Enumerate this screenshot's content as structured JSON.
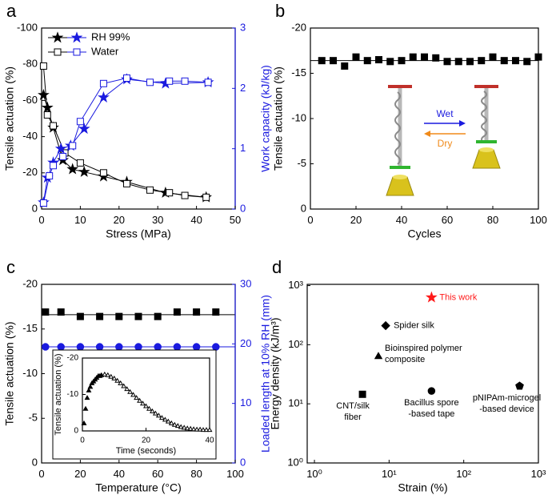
{
  "chart_data": [
    {
      "type": "line",
      "panel": "a",
      "xlabel": "Stress (MPa)",
      "ylabel": "Tensile actuation (%)",
      "y2label": "Work capacity  (kJ/kg)",
      "xlim": [
        0,
        50
      ],
      "xticks": [
        0,
        10,
        20,
        30,
        40,
        50
      ],
      "ylim": [
        0,
        -100
      ],
      "yticks": [
        0,
        -20,
        -40,
        -60,
        -80,
        -100
      ],
      "y2lim": [
        0,
        3
      ],
      "y2ticks": [
        0,
        1,
        2,
        3
      ],
      "y2color": "#1a1adf",
      "legend": "upper left",
      "series": [
        {
          "name": "RH 99%",
          "marker": "star-filled",
          "color": "#000000",
          "connect": true,
          "x": [
            0.5,
            1.5,
            3,
            5.5,
            8,
            11,
            16,
            22,
            32,
            42.5
          ],
          "values": [
            -63,
            -56,
            -45,
            -27,
            -22,
            -20.5,
            -18,
            -15,
            -9,
            -6.5
          ]
        },
        {
          "name": "Water",
          "marker": "square-open",
          "color": "#000000",
          "connect": true,
          "x": [
            0.5,
            1.5,
            3,
            6,
            10,
            16,
            22,
            28,
            33,
            37,
            42.5
          ],
          "values": [
            -79,
            -52,
            -46,
            -31,
            -25.5,
            -20,
            -14,
            -10.5,
            -9,
            -7.5,
            -6.5
          ]
        },
        {
          "marker": "star-filled",
          "color": "#1a1adf",
          "axis": "y2",
          "connect": true,
          "x": [
            0.5,
            1.5,
            3,
            5,
            7.5,
            11,
            16,
            22,
            32,
            43
          ],
          "values": [
            0.11,
            0.52,
            0.77,
            1.0,
            1.05,
            1.33,
            1.85,
            2.15,
            2.08,
            2.1
          ]
        },
        {
          "marker": "square-open",
          "color": "#1a1adf",
          "axis": "y2",
          "connect": true,
          "x": [
            0.5,
            2,
            3,
            5.5,
            8,
            10,
            16,
            22,
            28,
            33,
            37,
            43
          ],
          "values": [
            0.1,
            0.55,
            0.72,
            0.87,
            1.05,
            1.45,
            2.08,
            2.17,
            2.1,
            2.12,
            2.12,
            2.1
          ]
        }
      ]
    },
    {
      "type": "scatter",
      "panel": "b",
      "xlabel": "Cycles",
      "ylabel": "Tensile actuation (%)",
      "xlim": [
        0,
        100
      ],
      "xticks": [
        0,
        20,
        40,
        60,
        80,
        100
      ],
      "ylim": [
        0,
        -20
      ],
      "yticks": [
        0,
        -5,
        -10,
        -15,
        -20
      ],
      "annotations": [
        "Wet",
        "Dry"
      ],
      "series": [
        {
          "marker": "square-filled",
          "color": "#000000",
          "line_value": -16.4,
          "x": [
            5,
            10,
            15,
            20,
            25,
            30,
            35,
            40,
            45,
            50,
            55,
            60,
            65,
            70,
            75,
            80,
            85,
            90,
            95,
            100
          ],
          "values": [
            -16.4,
            -16.4,
            -15.8,
            -16.8,
            -16.4,
            -16.5,
            -16.3,
            -16.4,
            -16.8,
            -16.8,
            -16.7,
            -16.3,
            -16.3,
            -16.3,
            -16.4,
            -16.8,
            -16.4,
            -16.4,
            -16.3,
            -16.8
          ]
        }
      ]
    },
    {
      "type": "scatter",
      "panel": "c",
      "xlabel": "Temperature (°C)",
      "ylabel": "Tensile actuation (%)",
      "y2label": "Loaded length at 10% RH (mm)",
      "xlim": [
        0,
        100
      ],
      "xticks": [
        0,
        20,
        40,
        60,
        80,
        100
      ],
      "ylim": [
        0,
        -20
      ],
      "yticks": [
        0,
        -5,
        -10,
        -15,
        -20
      ],
      "y2lim": [
        0,
        30
      ],
      "y2ticks": [
        0,
        10,
        20,
        30
      ],
      "y2color": "#1a1adf",
      "series": [
        {
          "marker": "square-filled",
          "color": "#000000",
          "line_value": -16.6,
          "x": [
            2,
            10,
            20,
            30,
            40,
            50,
            60,
            70,
            80,
            90
          ],
          "values": [
            -16.9,
            -16.9,
            -16.4,
            -16.4,
            -16.4,
            -16.4,
            -16.4,
            -16.9,
            -16.9,
            -16.9
          ]
        },
        {
          "marker": "circle-filled",
          "color": "#1a1adf",
          "axis": "y2",
          "line_value": 19.5,
          "x": [
            2,
            10,
            20,
            30,
            40,
            50,
            60,
            70,
            80,
            90
          ],
          "values": [
            19.5,
            19.5,
            19.5,
            19.5,
            19.5,
            19.5,
            19.5,
            19.5,
            19.5,
            19.5
          ]
        }
      ],
      "inset": {
        "type": "scatter",
        "xlabel": "Time (seconds)",
        "ylabel": "Tensile actuation (%)",
        "xlim": [
          0,
          40
        ],
        "xticks": [
          0,
          20,
          40
        ],
        "ylim": [
          0,
          -20
        ],
        "yticks": [
          0,
          -10,
          -20
        ],
        "series": [
          {
            "marker": "triangle-filled",
            "color": "#000000",
            "x": [
              0.5,
              1,
              1.5,
              2,
              2.5,
              3,
              3.5,
              4,
              4.5,
              5,
              5.5,
              6
            ],
            "values": [
              -2,
              -6,
              -9,
              -11,
              -12,
              -13,
              -13.5,
              -14,
              -14.5,
              -15,
              -15,
              -15.2
            ]
          },
          {
            "marker": "triangle-open",
            "color": "#000000",
            "x": [
              7,
              8,
              9,
              10,
              11,
              12,
              13,
              14,
              15,
              16,
              17,
              18,
              19,
              20,
              21,
              22,
              23,
              24,
              25,
              26,
              27,
              28,
              29,
              30,
              31,
              32,
              33,
              34,
              35,
              36,
              37,
              38,
              39,
              40
            ],
            "values": [
              -15.4,
              -15.2,
              -14.8,
              -14.3,
              -13.7,
              -13,
              -12.2,
              -11.4,
              -10.6,
              -9.8,
              -9,
              -8.2,
              -7.4,
              -6.7,
              -6,
              -5.3,
              -4.7,
              -4.1,
              -3.5,
              -3,
              -2.5,
              -2,
              -1.6,
              -1.3,
              -1,
              -0.8,
              -0.6,
              -0.5,
              -0.4,
              -0.3,
              -0.3,
              -0.2,
              -0.2,
              -0.2
            ]
          }
        ]
      }
    },
    {
      "type": "scatter",
      "panel": "d",
      "xlabel": "Strain (%)",
      "ylabel": "Energy density (kJ/m³)",
      "xlog": true,
      "ylog": true,
      "xlim": [
        0.8,
        1000
      ],
      "xticks": [
        {
          "value": 1,
          "label": "10⁰"
        },
        {
          "value": 10,
          "label": "10¹"
        },
        {
          "value": 100,
          "label": "10²"
        },
        {
          "value": 1000,
          "label": "10³"
        }
      ],
      "ylim": [
        1,
        1050
      ],
      "yticks": [
        {
          "value": 1,
          "label": "10⁰"
        },
        {
          "value": 10,
          "label": "10¹"
        },
        {
          "value": 100,
          "label": "10²"
        },
        {
          "value": 1000,
          "label": "10³"
        }
      ],
      "series": [
        {
          "name": [
            "This work"
          ],
          "marker": "star-filled",
          "color": "#ff1a1a",
          "x": [
            37
          ],
          "values": [
            630
          ]
        },
        {
          "name": [
            "Spider silk"
          ],
          "marker": "diamond-filled",
          "color": "#000000",
          "x": [
            9
          ],
          "values": [
            210
          ]
        },
        {
          "name": [
            "Bioinspired polymer",
            "composite"
          ],
          "marker": "triangle-filled",
          "color": "#000000",
          "x": [
            7.2
          ],
          "values": [
            63
          ]
        },
        {
          "name": [
            "CNT/silk",
            "fiber"
          ],
          "marker": "square-filled",
          "color": "#000000",
          "x": [
            4.4
          ],
          "values": [
            14.5
          ]
        },
        {
          "name": [
            "Bacillus spore",
            "-based tape"
          ],
          "marker": "circle-filled",
          "color": "#000000",
          "x": [
            37
          ],
          "values": [
            16.5
          ]
        },
        {
          "name": [
            "pNIPAm-microgel",
            "-based device"
          ],
          "marker": "pentagon-filled",
          "color": "#000000",
          "x": [
            560
          ],
          "values": [
            20
          ]
        }
      ]
    }
  ]
}
